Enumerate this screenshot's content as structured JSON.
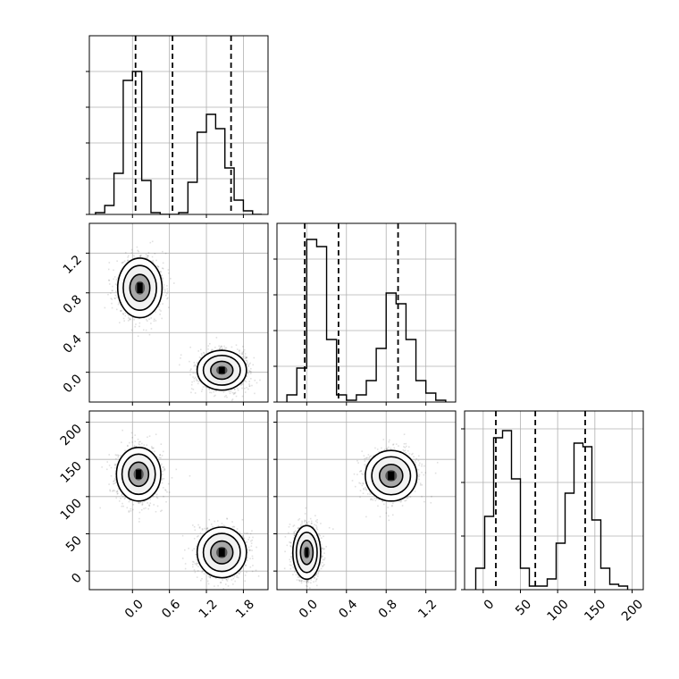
{
  "chart_data": {
    "type": "corner",
    "grid": true,
    "panels": [
      {
        "id": "hist-0",
        "type": "histogram",
        "variable": 0,
        "xlim": [
          -0.7,
          2.2
        ],
        "ylim": [
          0,
          100
        ],
        "bins_edges": [
          -0.6,
          -0.45,
          -0.3,
          -0.15,
          0.0,
          0.15,
          0.3,
          0.45,
          0.6,
          0.75,
          0.9,
          1.05,
          1.2,
          1.35,
          1.5,
          1.65,
          1.8,
          1.95,
          2.1
        ],
        "counts": [
          1,
          5,
          23,
          75,
          80,
          19,
          1,
          0,
          0,
          1,
          18,
          46,
          56,
          48,
          26,
          8,
          2,
          0
        ],
        "quantile_lines": [
          0.05,
          0.65,
          1.6
        ],
        "xticks": [
          0.0,
          0.6,
          1.2,
          1.8
        ],
        "yticks": [
          0,
          20,
          40,
          60,
          80
        ],
        "show_tick_labels": false
      },
      {
        "id": "hist-1",
        "type": "histogram",
        "variable": 1,
        "xlim": [
          -0.3,
          1.5
        ],
        "ylim": [
          0,
          100
        ],
        "bins_edges": [
          -0.2,
          -0.1,
          0.0,
          0.1,
          0.2,
          0.3,
          0.4,
          0.5,
          0.6,
          0.7,
          0.8,
          0.9,
          1.0,
          1.1,
          1.2,
          1.3,
          1.4
        ],
        "counts": [
          4,
          19,
          91,
          87,
          35,
          4,
          1,
          4,
          12,
          30,
          61,
          55,
          35,
          12,
          5,
          1
        ],
        "quantile_lines": [
          -0.02,
          0.32,
          0.92
        ],
        "xticks": [
          0.0,
          0.4,
          0.8,
          1.2
        ],
        "yticks": [
          0,
          20,
          40,
          60,
          80
        ],
        "show_tick_labels": false
      },
      {
        "id": "hist-2",
        "type": "histogram",
        "variable": 2,
        "xlim": [
          -25,
          215
        ],
        "ylim": [
          0,
          100
        ],
        "bins_edges": [
          -10,
          2,
          14,
          26,
          38,
          50,
          62,
          74,
          86,
          98,
          110,
          122,
          134,
          146,
          158,
          170,
          182,
          194
        ],
        "counts": [
          12,
          41,
          85,
          89,
          62,
          12,
          2,
          2,
          6,
          26,
          54,
          82,
          80,
          39,
          12,
          3,
          2
        ],
        "quantile_lines": [
          17,
          70,
          137
        ],
        "xticks": [
          0,
          50,
          100,
          150,
          200
        ],
        "yticks": [
          0,
          30,
          60,
          90
        ],
        "show_tick_labels": true
      },
      {
        "id": "scatter-1-0",
        "type": "scatter_density",
        "x_variable": 0,
        "y_variable": 1,
        "xlim": [
          -0.7,
          2.2
        ],
        "ylim": [
          -0.3,
          1.5
        ],
        "xticks": [
          0.0,
          0.6,
          1.2,
          1.8
        ],
        "yticks": [
          0.0,
          0.4,
          0.8,
          1.2
        ],
        "show_x_tick_labels": false,
        "show_y_tick_labels": true,
        "clusters": [
          {
            "mean": [
              0.12,
              0.85
            ],
            "sd": [
              0.18,
              0.15
            ],
            "n": 1300
          },
          {
            "mean": [
              1.45,
              0.02
            ],
            "sd": [
              0.2,
              0.1
            ],
            "n": 1300
          }
        ]
      },
      {
        "id": "scatter-2-0",
        "type": "scatter_density",
        "x_variable": 0,
        "y_variable": 2,
        "xlim": [
          -0.7,
          2.2
        ],
        "ylim": [
          -25,
          215
        ],
        "xticks": [
          0.0,
          0.6,
          1.2,
          1.8
        ],
        "yticks": [
          0,
          50,
          100,
          150,
          200
        ],
        "show_x_tick_labels": true,
        "show_y_tick_labels": true,
        "clusters": [
          {
            "mean": [
              0.1,
              130
            ],
            "sd": [
              0.18,
              18
            ],
            "n": 1300
          },
          {
            "mean": [
              1.45,
              25
            ],
            "sd": [
              0.2,
              17
            ],
            "n": 1300
          }
        ]
      },
      {
        "id": "scatter-2-1",
        "type": "scatter_density",
        "x_variable": 1,
        "y_variable": 2,
        "xlim": [
          -0.3,
          1.5
        ],
        "ylim": [
          -25,
          215
        ],
        "xticks": [
          0.0,
          0.4,
          0.8,
          1.2
        ],
        "yticks": [
          0,
          50,
          100,
          150,
          200
        ],
        "show_x_tick_labels": true,
        "show_y_tick_labels": false,
        "clusters": [
          {
            "mean": [
              0.85,
              128
            ],
            "sd": [
              0.13,
              17
            ],
            "n": 1300
          },
          {
            "mean": [
              0.0,
              25
            ],
            "sd": [
              0.07,
              18
            ],
            "n": 1300
          }
        ]
      }
    ]
  }
}
